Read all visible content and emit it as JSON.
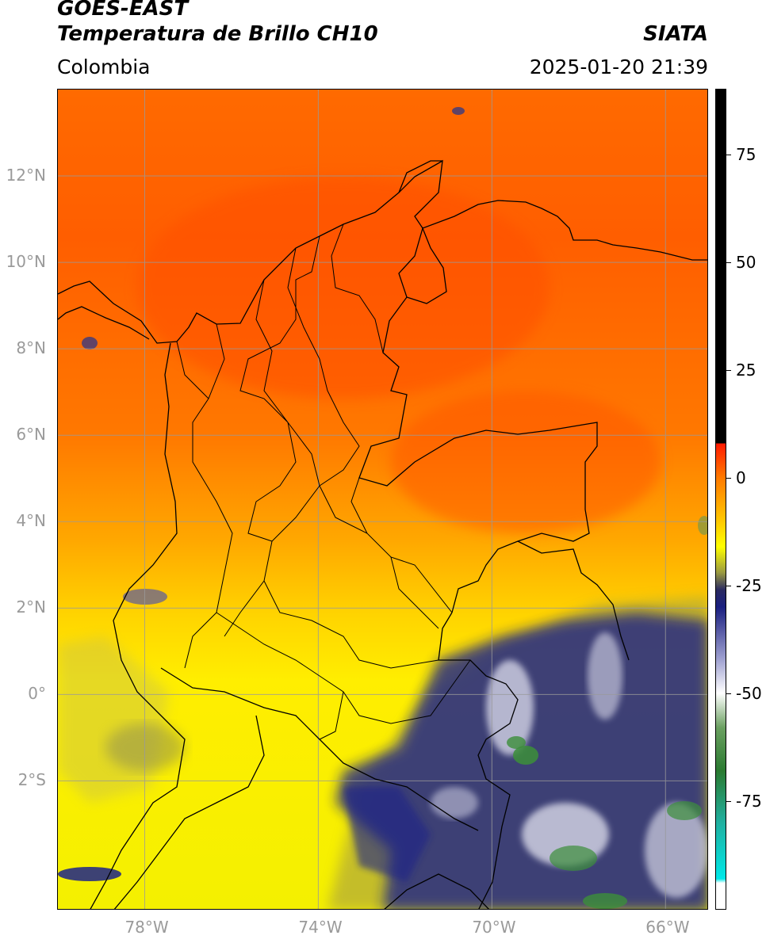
{
  "header": {
    "satellite": "GOES-EAST",
    "product": "Temperatura de Brillo CH10",
    "organization": "SIATA",
    "region": "Colombia",
    "timestamp": "2025-01-20 21:39"
  },
  "map": {
    "lon_range": [
      -80,
      -65
    ],
    "lat_range": [
      -5,
      14
    ],
    "lat_ticks": [
      {
        "value": 12,
        "label": "12°N"
      },
      {
        "value": 10,
        "label": "10°N"
      },
      {
        "value": 8,
        "label": "8°N"
      },
      {
        "value": 6,
        "label": "6°N"
      },
      {
        "value": 4,
        "label": "4°N"
      },
      {
        "value": 2,
        "label": "2°N"
      },
      {
        "value": 0,
        "label": "0°"
      },
      {
        "value": -2,
        "label": "2°S"
      }
    ],
    "lon_ticks": [
      {
        "value": -78,
        "label": "78°W"
      },
      {
        "value": -74,
        "label": "74°W"
      },
      {
        "value": -70,
        "label": "70°W"
      },
      {
        "value": -66,
        "label": "66°W"
      }
    ],
    "grid_color": "#9a9a9a",
    "colors": {
      "warm": "#ff6000",
      "mid": "#ffa500",
      "yellow": "#ffee00",
      "olive": "#a8a34a",
      "navy": "#1a1f80",
      "white": "#f2f2f2",
      "green": "#3c8f3a"
    }
  },
  "colorbar": {
    "range": [
      -100,
      90
    ],
    "ticks": [
      {
        "value": 75,
        "label": "75"
      },
      {
        "value": 50,
        "label": "50"
      },
      {
        "value": 25,
        "label": "25"
      },
      {
        "value": 0,
        "label": "0"
      },
      {
        "value": -25,
        "label": "-25"
      },
      {
        "value": -50,
        "label": "-50"
      },
      {
        "value": -75,
        "label": "-75"
      }
    ],
    "stops": [
      {
        "value": 90,
        "color": "#000000"
      },
      {
        "value": 8,
        "color": "#000000"
      },
      {
        "value": 7.9,
        "color": "#ff1a00"
      },
      {
        "value": 0,
        "color": "#ff7a00"
      },
      {
        "value": -10,
        "color": "#ffc800"
      },
      {
        "value": -16,
        "color": "#ffff00"
      },
      {
        "value": -22,
        "color": "#9a9a40"
      },
      {
        "value": -26,
        "color": "#2a2a60"
      },
      {
        "value": -30,
        "color": "#1a1f80"
      },
      {
        "value": -42,
        "color": "#9ea0d0"
      },
      {
        "value": -50,
        "color": "#ffffff"
      },
      {
        "value": -58,
        "color": "#6aa060"
      },
      {
        "value": -68,
        "color": "#2a7a30"
      },
      {
        "value": -80,
        "color": "#20b0a0"
      },
      {
        "value": -93,
        "color": "#00e8e8"
      },
      {
        "value": -94,
        "color": "#ffffff"
      },
      {
        "value": -100,
        "color": "#ffffff"
      }
    ]
  }
}
